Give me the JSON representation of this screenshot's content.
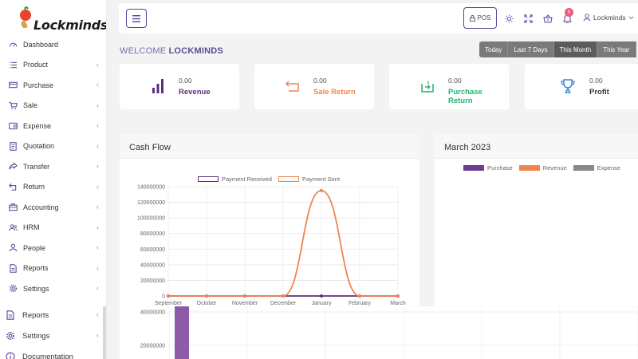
{
  "brand": {
    "name": "Lockminds"
  },
  "sidebar": {
    "items": [
      {
        "label": "Dashboard",
        "icon": "dashboard-icon",
        "has_children": false
      },
      {
        "label": "Product",
        "icon": "list-icon",
        "has_children": true
      },
      {
        "label": "Purchase",
        "icon": "card-icon",
        "has_children": true
      },
      {
        "label": "Sale",
        "icon": "cart-icon",
        "has_children": true
      },
      {
        "label": "Expense",
        "icon": "wallet-icon",
        "has_children": true
      },
      {
        "label": "Quotation",
        "icon": "document-icon",
        "has_children": true
      },
      {
        "label": "Transfer",
        "icon": "share-icon",
        "has_children": true
      },
      {
        "label": "Return",
        "icon": "return-icon",
        "has_children": true
      },
      {
        "label": "Accounting",
        "icon": "briefcase-icon",
        "has_children": true
      },
      {
        "label": "HRM",
        "icon": "users-icon",
        "has_children": true
      },
      {
        "label": "People",
        "icon": "person-icon",
        "has_children": true
      },
      {
        "label": "Reports",
        "icon": "report-icon",
        "has_children": true
      },
      {
        "label": "Settings",
        "icon": "gear-icon",
        "has_children": true
      }
    ],
    "secondary_items": [
      {
        "label": "Reports",
        "icon": "report-icon",
        "has_children": true
      },
      {
        "label": "Settings",
        "icon": "gear-icon",
        "has_children": true
      },
      {
        "label": "Documentation",
        "icon": "info-icon",
        "has_children": false
      }
    ],
    "chevron": "‹"
  },
  "header": {
    "pos_label": "POS",
    "notification_count": "9",
    "user_name": "Lockminds"
  },
  "welcome": {
    "prefix": "WELCOME",
    "name": "LOCKMINDS"
  },
  "date_range": {
    "options": [
      "Today",
      "Last 7 Days",
      "This Month",
      "This Year"
    ],
    "active": "This Month"
  },
  "stats": [
    {
      "value": "0.00",
      "label": "Revenue",
      "color": "#5b2f7e",
      "icon": "bar-chart-icon"
    },
    {
      "value": "0.00",
      "label": "Sale Return",
      "color": "#f0844f",
      "icon": "return-arrow-icon"
    },
    {
      "value": "0.00",
      "label": "Purchase Return",
      "color": "#22b573",
      "icon": "purchase-return-icon"
    },
    {
      "value": "0.00",
      "label": "Profit",
      "color": "#3b82d6",
      "icon": "trophy-icon"
    }
  ],
  "cash_flow": {
    "title": "Cash Flow",
    "chart_data": {
      "type": "line",
      "x": [
        "September",
        "October",
        "November",
        "December",
        "January",
        "February",
        "March"
      ],
      "series": [
        {
          "name": "Payment Received",
          "color": "#5b2f7e",
          "values": [
            0,
            0,
            0,
            0,
            0,
            0,
            0
          ]
        },
        {
          "name": "Payment Sent",
          "color": "#f0844f",
          "values": [
            0,
            0,
            0,
            0,
            135000000,
            0,
            0
          ]
        }
      ],
      "y_ticks": [
        "0",
        "20000000",
        "40000000",
        "60000000",
        "80000000",
        "100000000",
        "120000000",
        "140000000"
      ],
      "ylim": [
        0,
        140000000
      ],
      "grid": true,
      "legend": "top"
    }
  },
  "month_panel": {
    "title": "March 2023",
    "chart_data": {
      "type": "bar",
      "series": [
        {
          "name": "Purchase",
          "color": "#6a3d8f"
        },
        {
          "name": "Revenue",
          "color": "#f0844f"
        },
        {
          "name": "Expense",
          "color": "#888888"
        }
      ],
      "legend": "top"
    }
  },
  "bottom_chart": {
    "chart_data": {
      "type": "bar",
      "y_ticks": [
        "20000000",
        "40000000"
      ],
      "bar_color": "#8e5ba8",
      "grid": true
    }
  }
}
